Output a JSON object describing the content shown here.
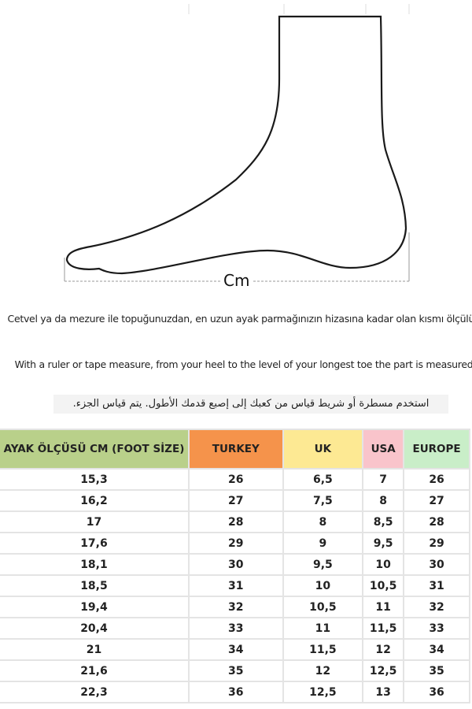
{
  "diagram": {
    "measure_label": "Cm"
  },
  "instructions": {
    "turkish": "Cetvel ya da mezure ile topuğunuzdan, en uzun ayak parmağınızın hizasına kadar olan kısmı ölçülür.",
    "english": "With a ruler or tape measure, from your heel to the level of your longest toe the part is measured",
    "arabic": "استخدم مسطرة أو شريط قياس من كعبك إلى إصبع قدمك الأطول.  يتم قياس الجزء."
  },
  "size_table": {
    "header_colors": [
      "#b9d08a",
      "#f5934b",
      "#fde993",
      "#f9c4cb",
      "#c9eec8"
    ],
    "columns": [
      "AYAK ÖLÇÜSÜ CM (FOOT SİZE)",
      "TURKEY",
      "UK",
      "USA",
      "EUROPE"
    ],
    "rows": [
      [
        "15,3",
        "26",
        "6,5",
        "7",
        "26"
      ],
      [
        "16,2",
        "27",
        "7,5",
        "8",
        "27"
      ],
      [
        "17",
        "28",
        "8",
        "8,5",
        "28"
      ],
      [
        "17,6",
        "29",
        "9",
        "9,5",
        "29"
      ],
      [
        "18,1",
        "30",
        "9,5",
        "10",
        "30"
      ],
      [
        "18,5",
        "31",
        "10",
        "10,5",
        "31"
      ],
      [
        "19,4",
        "32",
        "10,5",
        "11",
        "32"
      ],
      [
        "20,4",
        "33",
        "11",
        "11,5",
        "33"
      ],
      [
        "21",
        "34",
        "11,5",
        "12",
        "34"
      ],
      [
        "21,6",
        "35",
        "12",
        "12,5",
        "35"
      ],
      [
        "22,3",
        "36",
        "12,5",
        "13",
        "36"
      ]
    ]
  }
}
